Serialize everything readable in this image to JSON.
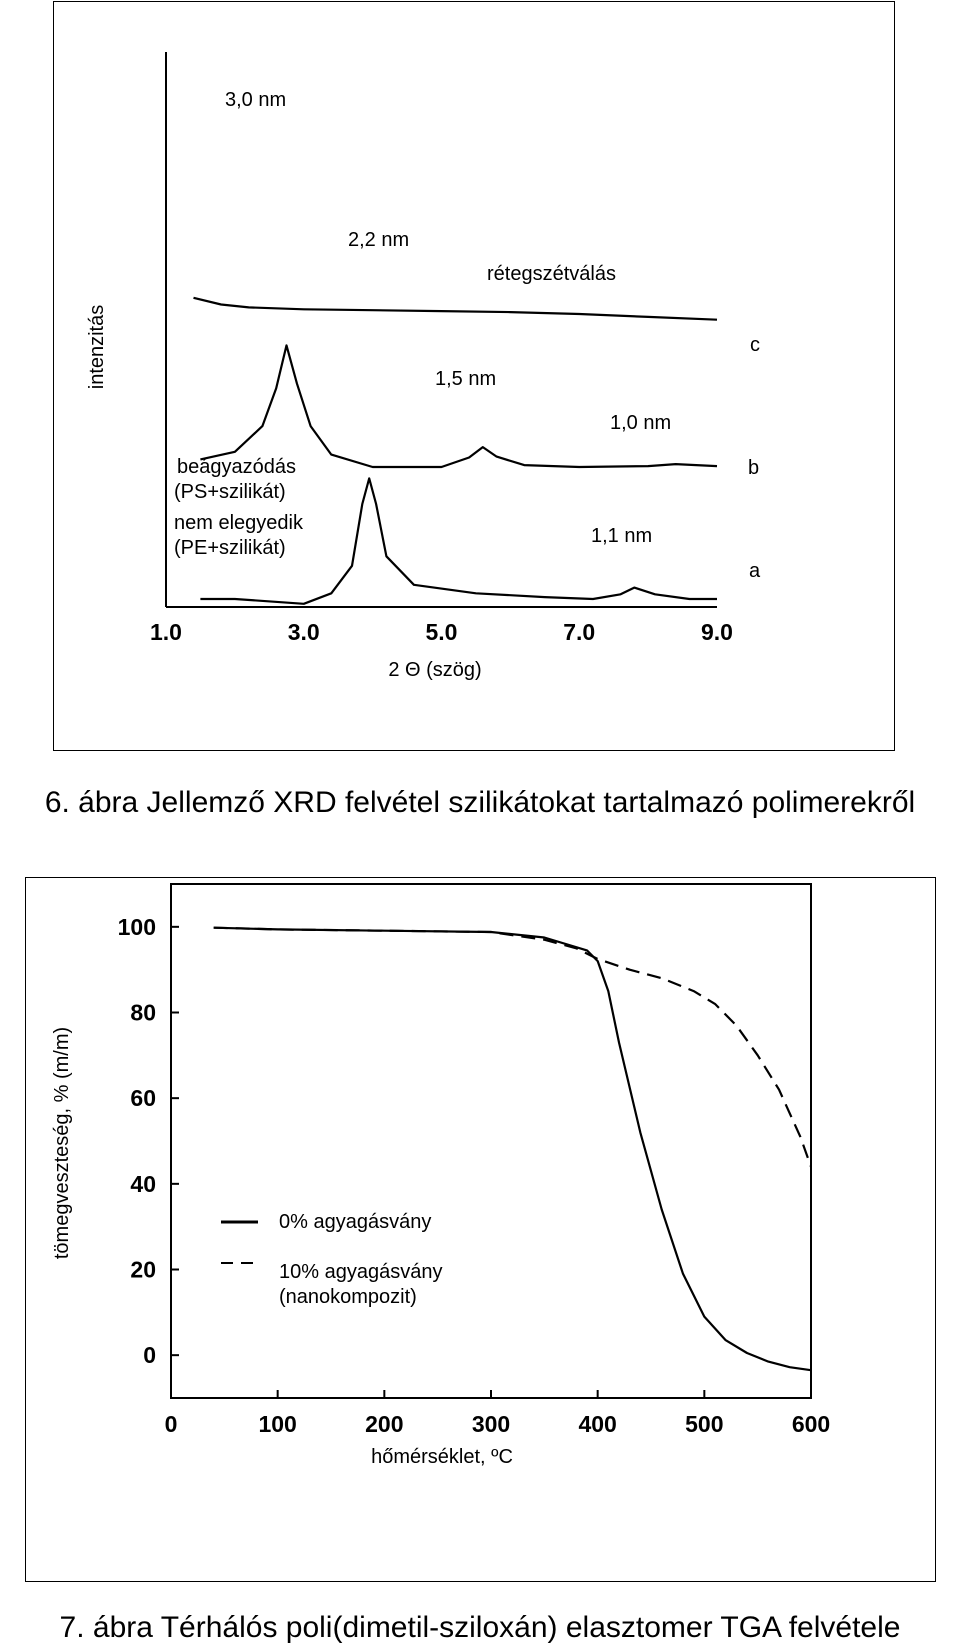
{
  "figures": [
    {
      "caption": "6. ábra Jellemző XRD felvétel szilikátokat tartalmazó polimerekről",
      "chart_data": {
        "type": "line",
        "xlabel": "2 Θ (szög)",
        "ylabel": "intenzitás",
        "xlim": [
          1.0,
          9.0
        ],
        "x_tick_labels": [
          "1.0",
          "3.0",
          "5.0",
          "7.0",
          "9.0"
        ],
        "series": [
          {
            "name": "c",
            "values": [
              [
                1.4,
                1.37
              ],
              [
                1.8,
                1.3
              ],
              [
                2.2,
                1.27
              ],
              [
                3.0,
                1.25
              ],
              [
                4.0,
                1.24
              ],
              [
                5.0,
                1.23
              ],
              [
                6.0,
                1.22
              ],
              [
                7.0,
                1.2
              ],
              [
                8.0,
                1.17
              ],
              [
                9.0,
                1.14
              ]
            ]
          },
          {
            "name": "b",
            "values": [
              [
                1.5,
                0.4
              ],
              [
                2.0,
                0.48
              ],
              [
                2.4,
                0.75
              ],
              [
                2.6,
                1.15
              ],
              [
                2.75,
                1.6
              ],
              [
                2.9,
                1.2
              ],
              [
                3.1,
                0.75
              ],
              [
                3.4,
                0.45
              ],
              [
                4.0,
                0.32
              ],
              [
                5.0,
                0.32
              ],
              [
                5.4,
                0.42
              ],
              [
                5.6,
                0.53
              ],
              [
                5.8,
                0.43
              ],
              [
                6.2,
                0.34
              ],
              [
                7.0,
                0.32
              ],
              [
                8.0,
                0.33
              ],
              [
                8.4,
                0.35
              ],
              [
                9.0,
                0.33
              ]
            ]
          },
          {
            "name": "a",
            "values": [
              [
                1.5,
                0.0
              ],
              [
                2.0,
                0.0
              ],
              [
                3.0,
                -0.05
              ],
              [
                3.4,
                0.06
              ],
              [
                3.7,
                0.35
              ],
              [
                3.85,
                1.0
              ],
              [
                3.95,
                1.27
              ],
              [
                4.05,
                1.0
              ],
              [
                4.2,
                0.45
              ],
              [
                4.6,
                0.15
              ],
              [
                5.5,
                0.06
              ],
              [
                6.5,
                0.02
              ],
              [
                7.2,
                0.0
              ],
              [
                7.6,
                0.05
              ],
              [
                7.8,
                0.12
              ],
              [
                8.1,
                0.05
              ],
              [
                8.6,
                0.0
              ],
              [
                9.0,
                0.0
              ]
            ]
          }
        ],
        "annotations": [
          "3,0 nm",
          "2,2 nm",
          "rétegszétválás",
          "1,5 nm",
          "1,0 nm",
          "beágyazódás",
          "(PS+szilikát)",
          "nem elegyedik",
          "(PE+szilikát)",
          "1,1 nm",
          "c",
          "b",
          "a"
        ]
      }
    },
    {
      "caption": "7. ábra Térhálós poli(dimetil-sziloxán) elasztomer TGA felvétele",
      "chart_data": {
        "type": "line",
        "xlabel": "hőmérséklet, ºC",
        "ylabel": "tömegveszteség, % (m/m)",
        "xlim": [
          0,
          600
        ],
        "ylim": [
          -10,
          110
        ],
        "x_ticks": [
          0,
          100,
          200,
          300,
          400,
          500,
          600
        ],
        "y_ticks": [
          0,
          20,
          40,
          60,
          80,
          100
        ],
        "series": [
          {
            "name": "0% agyagásvány",
            "values": [
              [
                40,
                99.8
              ],
              [
                100,
                99.4
              ],
              [
                200,
                99.1
              ],
              [
                300,
                98.8
              ],
              [
                350,
                97.5
              ],
              [
                390,
                94.5
              ],
              [
                400,
                92.0
              ],
              [
                410,
                85.0
              ],
              [
                420,
                73.0
              ],
              [
                440,
                52.0
              ],
              [
                460,
                34.0
              ],
              [
                480,
                19.0
              ],
              [
                500,
                9.0
              ],
              [
                520,
                3.5
              ],
              [
                540,
                0.5
              ],
              [
                560,
                -1.5
              ],
              [
                580,
                -2.8
              ],
              [
                600,
                -3.5
              ]
            ]
          },
          {
            "name": "10% agyagásvány (nanokompozit)",
            "values": [
              [
                40,
                99.8
              ],
              [
                100,
                99.4
              ],
              [
                200,
                99.1
              ],
              [
                300,
                98.8
              ],
              [
                350,
                97.0
              ],
              [
                380,
                95.0
              ],
              [
                400,
                92.5
              ],
              [
                430,
                90.0
              ],
              [
                460,
                88.0
              ],
              [
                490,
                85.0
              ],
              [
                510,
                82.0
              ],
              [
                530,
                77.0
              ],
              [
                550,
                70.0
              ],
              [
                570,
                62.0
              ],
              [
                590,
                51.0
              ],
              [
                600,
                44.0
              ]
            ]
          }
        ],
        "legend": [
          "0% agyagásvány",
          "10% agyagásvány",
          "(nanokompozit)"
        ]
      }
    }
  ]
}
